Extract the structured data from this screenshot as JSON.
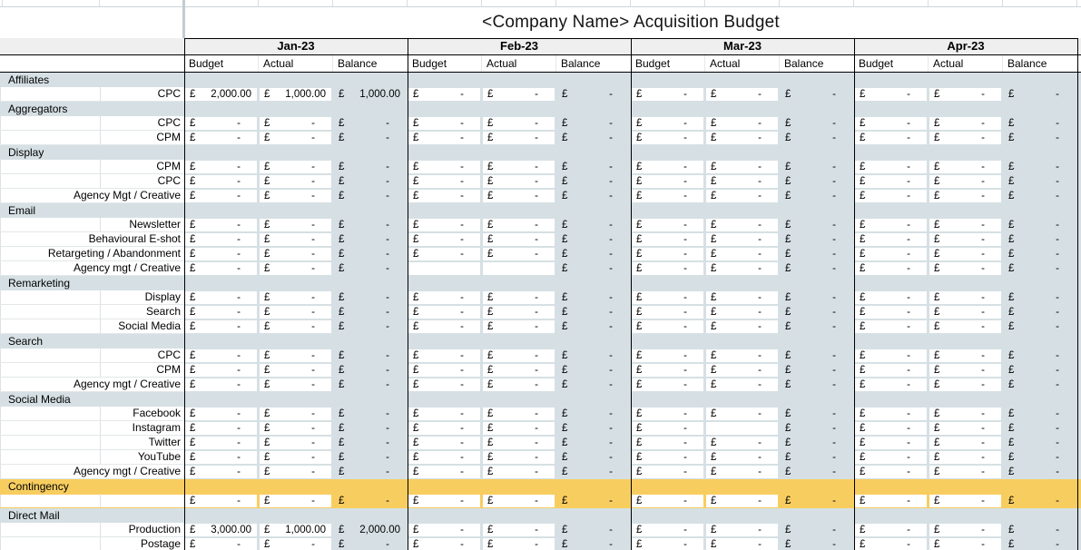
{
  "title": "<Company Name> Acquisition Budget",
  "currency": "£",
  "months": [
    "Jan-23",
    "Feb-23",
    "Mar-23",
    "Apr-23"
  ],
  "sub_headers": [
    "Budget",
    "Actual",
    "Balance"
  ],
  "colors": {
    "sheet_background": "#d6e0e4",
    "cell_white": "#ffffff",
    "month_band_grey": "#efefef",
    "contingency_yellow": "#f8cd60",
    "grid_black": "#000000",
    "label_row_border": "#e3e7e9",
    "label_divider": "#dde2e5",
    "thick_grey_line": "#c2ccd1"
  },
  "sections": [
    {
      "label": "Affiliates",
      "highlight": false,
      "rows": [
        {
          "label": "CPC",
          "values": [
            [
              "2,000.00",
              "1,000.00",
              "1,000.00"
            ],
            [
              "-",
              "-",
              "-"
            ],
            [
              "-",
              "-",
              "-"
            ],
            [
              "-",
              "-",
              "-"
            ]
          ]
        }
      ]
    },
    {
      "label": "Aggregators",
      "highlight": false,
      "rows": [
        {
          "label": "CPC",
          "values": [
            [
              "-",
              "-",
              "-"
            ],
            [
              "-",
              "-",
              "-"
            ],
            [
              "-",
              "-",
              "-"
            ],
            [
              "-",
              "-",
              "-"
            ]
          ]
        },
        {
          "label": "CPM",
          "values": [
            [
              "-",
              "-",
              "-"
            ],
            [
              "-",
              "-",
              "-"
            ],
            [
              "-",
              "-",
              "-"
            ],
            [
              "-",
              "-",
              "-"
            ]
          ]
        }
      ]
    },
    {
      "label": "Display",
      "highlight": false,
      "rows": [
        {
          "label": "CPM",
          "values": [
            [
              "-",
              "-",
              "-"
            ],
            [
              "-",
              "-",
              "-"
            ],
            [
              "-",
              "-",
              "-"
            ],
            [
              "-",
              "-",
              "-"
            ]
          ]
        },
        {
          "label": "CPC",
          "values": [
            [
              "-",
              "-",
              "-"
            ],
            [
              "-",
              "-",
              "-"
            ],
            [
              "-",
              "-",
              "-"
            ],
            [
              "-",
              "-",
              "-"
            ]
          ]
        },
        {
          "label": "Agency Mgt / Creative",
          "values": [
            [
              "-",
              "-",
              "-"
            ],
            [
              "-",
              "-",
              "-"
            ],
            [
              "-",
              "-",
              "-"
            ],
            [
              "-",
              "-",
              "-"
            ]
          ]
        }
      ]
    },
    {
      "label": "Email",
      "highlight": false,
      "rows": [
        {
          "label": "Newsletter",
          "values": [
            [
              "-",
              "-",
              "-"
            ],
            [
              "-",
              "-",
              "-"
            ],
            [
              "-",
              "-",
              "-"
            ],
            [
              "-",
              "-",
              "-"
            ]
          ]
        },
        {
          "label": "Behavioural E-shot",
          "values": [
            [
              "-",
              "-",
              "-"
            ],
            [
              "-",
              "-",
              "-"
            ],
            [
              "-",
              "-",
              "-"
            ],
            [
              "-",
              "-",
              "-"
            ]
          ]
        },
        {
          "label": "Retargeting / Abandonment",
          "values": [
            [
              "-",
              "-",
              "-"
            ],
            [
              "-",
              "-",
              "-"
            ],
            [
              "-",
              "-",
              "-"
            ],
            [
              "-",
              "-",
              "-"
            ]
          ]
        },
        {
          "label": "Agency mgt / Creative",
          "values": [
            [
              "-",
              "-",
              "-"
            ],
            [
              "",
              "",
              "-"
            ],
            [
              "-",
              "-",
              "-"
            ],
            [
              "-",
              "-",
              "-"
            ]
          ]
        }
      ]
    },
    {
      "label": "Remarketing",
      "highlight": false,
      "rows": [
        {
          "label": "Display",
          "values": [
            [
              "-",
              "-",
              "-"
            ],
            [
              "-",
              "-",
              "-"
            ],
            [
              "-",
              "-",
              "-"
            ],
            [
              "-",
              "-",
              "-"
            ]
          ]
        },
        {
          "label": "Search",
          "values": [
            [
              "-",
              "-",
              "-"
            ],
            [
              "-",
              "-",
              "-"
            ],
            [
              "-",
              "-",
              "-"
            ],
            [
              "-",
              "-",
              "-"
            ]
          ]
        },
        {
          "label": "Social Media",
          "values": [
            [
              "-",
              "-",
              "-"
            ],
            [
              "-",
              "-",
              "-"
            ],
            [
              "-",
              "-",
              "-"
            ],
            [
              "-",
              "-",
              "-"
            ]
          ]
        }
      ]
    },
    {
      "label": "Search",
      "highlight": false,
      "rows": [
        {
          "label": "CPC",
          "values": [
            [
              "-",
              "-",
              "-"
            ],
            [
              "-",
              "-",
              "-"
            ],
            [
              "-",
              "-",
              "-"
            ],
            [
              "-",
              "-",
              "-"
            ]
          ]
        },
        {
          "label": "CPM",
          "values": [
            [
              "-",
              "-",
              "-"
            ],
            [
              "-",
              "-",
              "-"
            ],
            [
              "-",
              "-",
              "-"
            ],
            [
              "-",
              "-",
              "-"
            ]
          ]
        },
        {
          "label": "Agency mgt / Creative",
          "values": [
            [
              "-",
              "-",
              "-"
            ],
            [
              "-",
              "-",
              "-"
            ],
            [
              "-",
              "-",
              "-"
            ],
            [
              "-",
              "-",
              "-"
            ]
          ]
        }
      ]
    },
    {
      "label": "Social Media",
      "highlight": false,
      "rows": [
        {
          "label": "Facebook",
          "values": [
            [
              "-",
              "-",
              "-"
            ],
            [
              "-",
              "-",
              "-"
            ],
            [
              "-",
              "-",
              "-"
            ],
            [
              "-",
              "-",
              "-"
            ]
          ]
        },
        {
          "label": "Instagram",
          "values": [
            [
              "-",
              "-",
              "-"
            ],
            [
              "-",
              "-",
              "-"
            ],
            [
              "-",
              "",
              "-"
            ],
            [
              "-",
              "-",
              "-"
            ]
          ]
        },
        {
          "label": "Twitter",
          "values": [
            [
              "-",
              "-",
              "-"
            ],
            [
              "-",
              "-",
              "-"
            ],
            [
              "-",
              "-",
              "-"
            ],
            [
              "-",
              "-",
              "-"
            ]
          ]
        },
        {
          "label": "YouTube",
          "values": [
            [
              "-",
              "-",
              "-"
            ],
            [
              "-",
              "-",
              "-"
            ],
            [
              "-",
              "-",
              "-"
            ],
            [
              "-",
              "-",
              "-"
            ]
          ]
        },
        {
          "label": "Agency mgt / Creative",
          "values": [
            [
              "-",
              "-",
              "-"
            ],
            [
              "-",
              "-",
              "-"
            ],
            [
              "-",
              "-",
              "-"
            ],
            [
              "-",
              "-",
              "-"
            ]
          ]
        }
      ]
    },
    {
      "label": "Contingency",
      "highlight": true,
      "rows": [
        {
          "label": "",
          "values": [
            [
              "-",
              "-",
              "-"
            ],
            [
              "-",
              "-",
              "-"
            ],
            [
              "-",
              "-",
              "-"
            ],
            [
              "-",
              "-",
              "-"
            ]
          ]
        }
      ]
    },
    {
      "label": "Direct Mail",
      "highlight": false,
      "rows": [
        {
          "label": "Production",
          "values": [
            [
              "3,000.00",
              "1,000.00",
              "2,000.00"
            ],
            [
              "-",
              "-",
              "-"
            ],
            [
              "-",
              "-",
              "-"
            ],
            [
              "-",
              "-",
              "-"
            ]
          ]
        },
        {
          "label": "Postage",
          "values": [
            [
              "-",
              "-",
              "-"
            ],
            [
              "-",
              "-",
              "-"
            ],
            [
              "-",
              "-",
              "-"
            ],
            [
              "-",
              "-",
              "-"
            ]
          ]
        }
      ]
    }
  ]
}
